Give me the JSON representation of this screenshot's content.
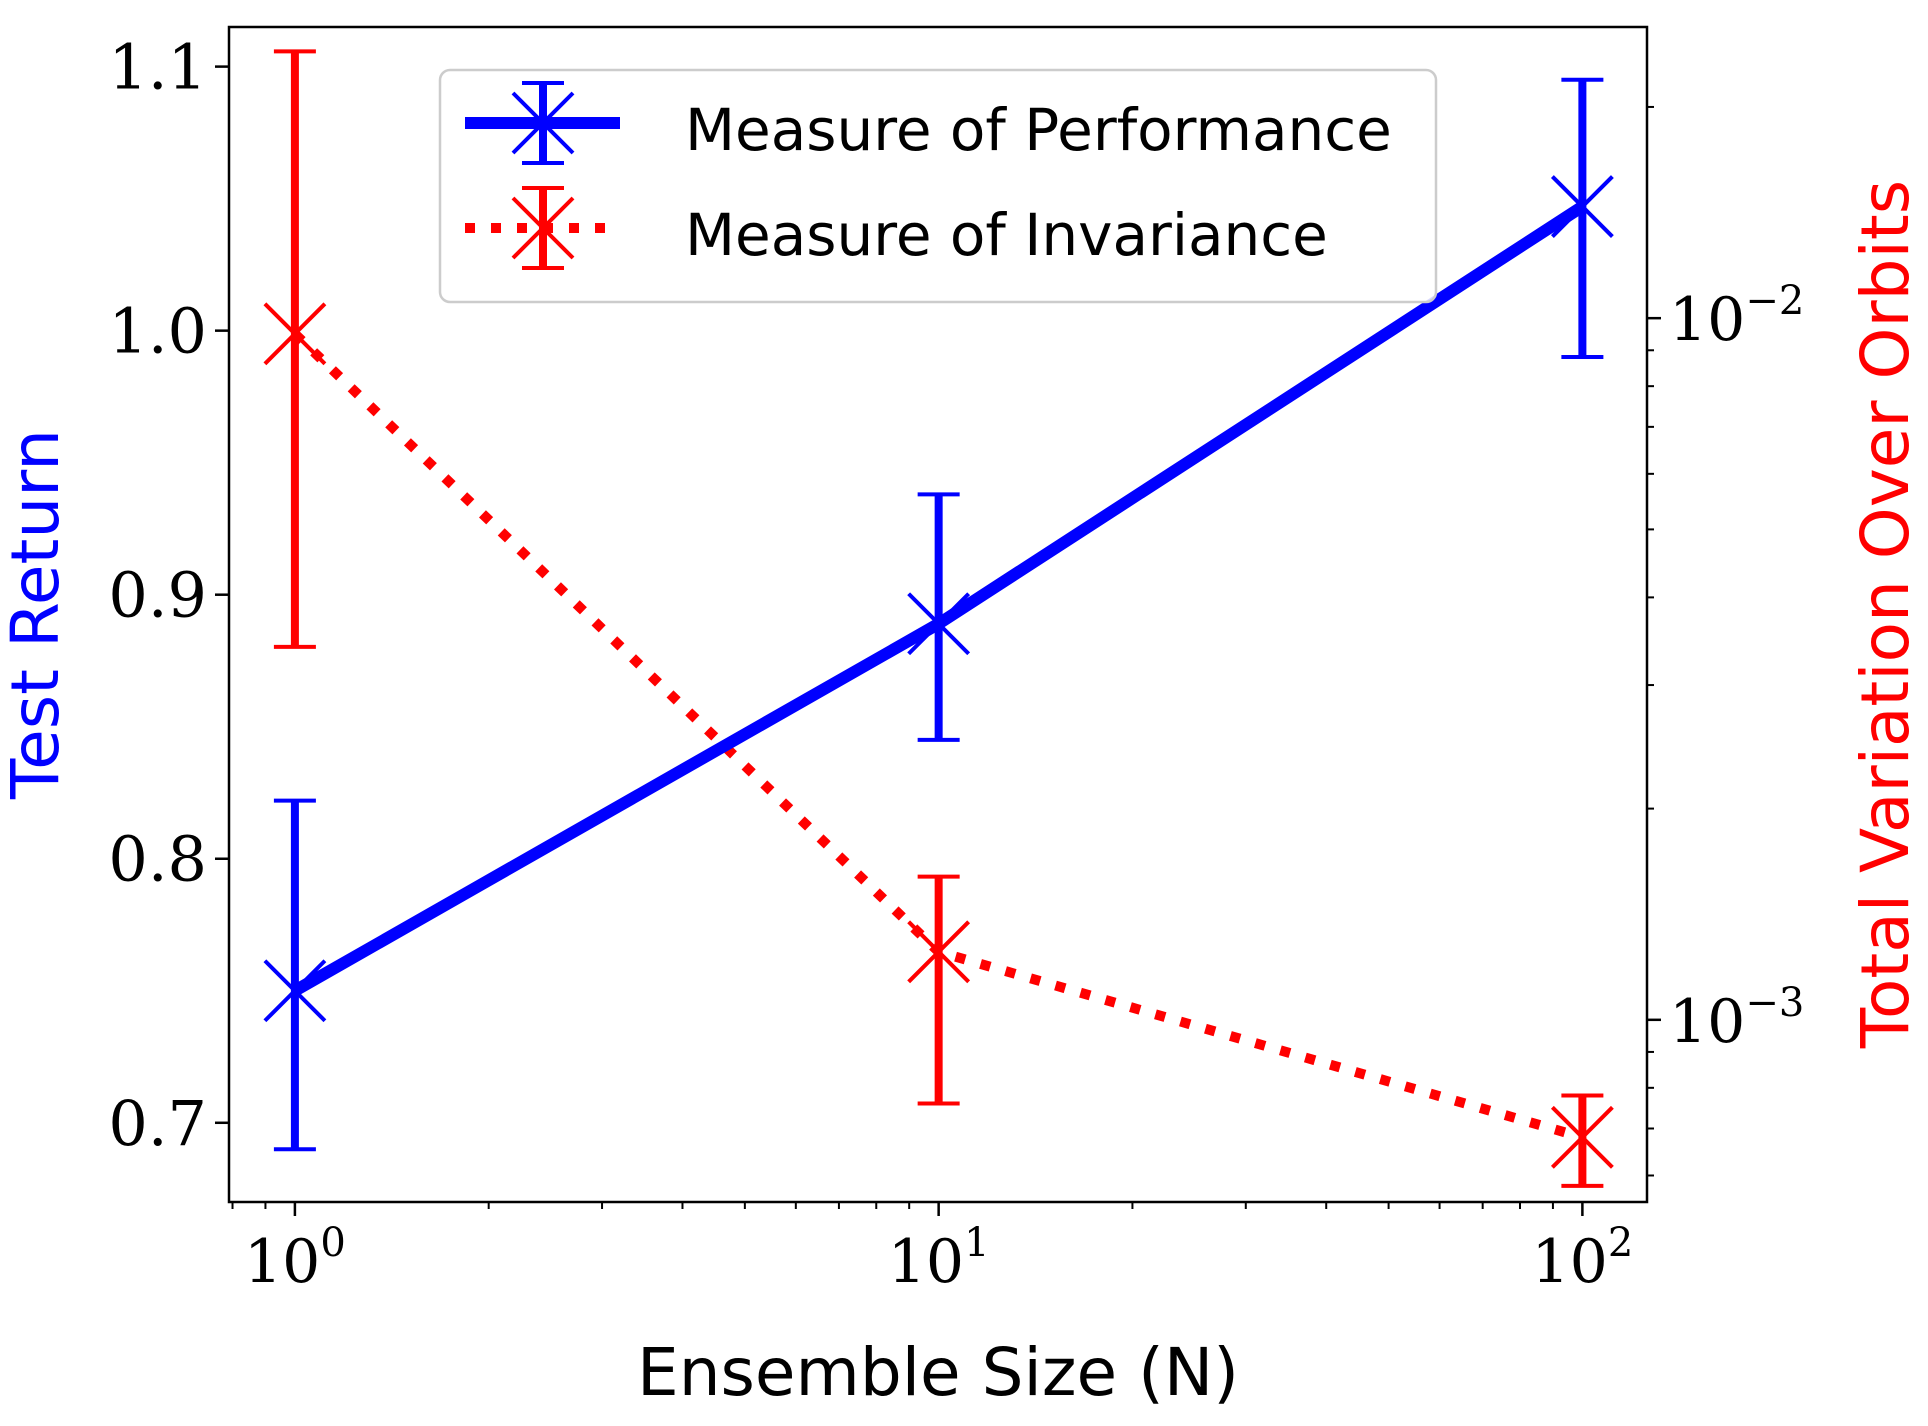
{
  "chart_data": {
    "type": "line",
    "x": [
      1,
      10,
      100
    ],
    "xlabel": "Ensemble Size (N)",
    "xscale": "log",
    "xlim": [
      0.79,
      126
    ],
    "xticks": [
      {
        "value": 1,
        "base": "10",
        "exp": "0"
      },
      {
        "value": 10,
        "base": "10",
        "exp": "1"
      },
      {
        "value": 100,
        "base": "10",
        "exp": "2"
      }
    ],
    "y_left": {
      "label": "Test Return",
      "color": "#0000ff",
      "scale": "linear",
      "lim": [
        0.67,
        1.115
      ],
      "ticks": [
        {
          "value": 0.7,
          "label": "0.7"
        },
        {
          "value": 0.8,
          "label": "0.8"
        },
        {
          "value": 0.9,
          "label": "0.9"
        },
        {
          "value": 1.0,
          "label": "1.0"
        },
        {
          "value": 1.1,
          "label": "1.1"
        }
      ]
    },
    "y_right": {
      "label": "Total Variation Over Orbits",
      "color": "#ff0000",
      "scale": "log",
      "lim": [
        0.00055,
        0.026
      ],
      "ticks": [
        {
          "value": 0.001,
          "base": "10",
          "exp": "−3"
        },
        {
          "value": 0.01,
          "base": "10",
          "exp": "−2"
        }
      ]
    },
    "series": [
      {
        "name": "Measure of Performance",
        "axis": "left",
        "color": "#0000ff",
        "style": "solid",
        "y": [
          0.75,
          0.889,
          1.047
        ],
        "err_low": [
          0.69,
          0.845,
          0.99
        ],
        "err_high": [
          0.822,
          0.938,
          1.095
        ]
      },
      {
        "name": "Measure of Invariance",
        "axis": "right",
        "color": "#ff0000",
        "style": "dotted",
        "y": [
          0.0095,
          0.00125,
          0.00068
        ],
        "err_low": [
          0.0034,
          0.00076,
          0.00058
        ],
        "err_high": [
          0.024,
          0.0016,
          0.00078
        ]
      }
    ],
    "legend_position": "top-center",
    "grid": false
  }
}
